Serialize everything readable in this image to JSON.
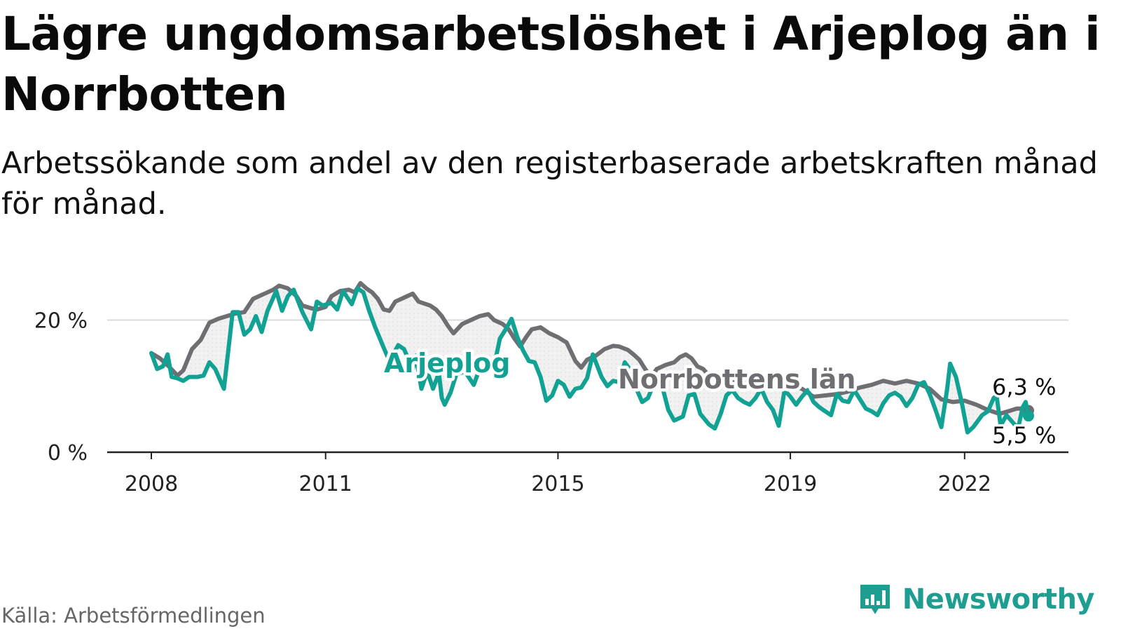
{
  "title": "Lägre ungdomsarbetslöshet i Arjeplog än i Norrbotten",
  "subtitle": "Arbetssökande som andel av den registerbaserade arbetskraften månad för månad.",
  "source": "Källa: Arbetsförmedlingen",
  "brand": {
    "name": "Newsworthy",
    "icon": "newsworthy-bar-chart-icon"
  },
  "colors": {
    "arjeplog": "#11a294",
    "norrbotten": "#6e6e73",
    "grid": "#dadada",
    "axis": "#222222",
    "brand": "#1d9e91"
  },
  "chart_data": {
    "type": "line",
    "title": "Lägre ungdomsarbetslöshet i Arjeplog än i Norrbotten",
    "xlabel": "",
    "ylabel": "",
    "xlim": [
      2008,
      2023.1
    ],
    "ylim": [
      0,
      26
    ],
    "yticks": [
      {
        "value": 0,
        "label": "0 %"
      },
      {
        "value": 20,
        "label": "20 %"
      }
    ],
    "xticks": [
      {
        "value": 2008,
        "label": "2008"
      },
      {
        "value": 2011,
        "label": "2011"
      },
      {
        "value": 2015,
        "label": "2015"
      },
      {
        "value": 2019,
        "label": "2019"
      },
      {
        "value": 2022,
        "label": "2022"
      }
    ],
    "grid": true,
    "series": [
      {
        "name": "Norrbottens län",
        "label": "Norrbottens län",
        "end_label": "6,3 %",
        "color": "#6e6e73",
        "points": [
          [
            2008.0,
            15.0
          ],
          [
            2008.15,
            14.2
          ],
          [
            2008.3,
            13.0
          ],
          [
            2008.45,
            11.6
          ],
          [
            2008.55,
            12.4
          ],
          [
            2008.7,
            15.6
          ],
          [
            2008.85,
            17.0
          ],
          [
            2009.0,
            19.6
          ],
          [
            2009.15,
            20.2
          ],
          [
            2009.3,
            20.6
          ],
          [
            2009.45,
            21.0
          ],
          [
            2009.6,
            21.2
          ],
          [
            2009.75,
            23.2
          ],
          [
            2009.9,
            23.8
          ],
          [
            2010.1,
            24.6
          ],
          [
            2010.2,
            25.2
          ],
          [
            2010.35,
            24.8
          ],
          [
            2010.5,
            23.6
          ],
          [
            2010.6,
            22.2
          ],
          [
            2010.75,
            21.8
          ],
          [
            2010.85,
            21.6
          ],
          [
            2011.0,
            22.0
          ],
          [
            2011.1,
            23.6
          ],
          [
            2011.25,
            24.4
          ],
          [
            2011.4,
            24.6
          ],
          [
            2011.5,
            24.2
          ],
          [
            2011.6,
            25.6
          ],
          [
            2011.7,
            24.8
          ],
          [
            2011.8,
            24.2
          ],
          [
            2011.9,
            23.2
          ],
          [
            2012.0,
            21.6
          ],
          [
            2012.1,
            21.4
          ],
          [
            2012.2,
            22.8
          ],
          [
            2012.35,
            23.4
          ],
          [
            2012.5,
            24.0
          ],
          [
            2012.6,
            22.8
          ],
          [
            2012.8,
            22.2
          ],
          [
            2012.9,
            21.6
          ],
          [
            2013.0,
            20.6
          ],
          [
            2013.1,
            19.2
          ],
          [
            2013.2,
            18.0
          ],
          [
            2013.35,
            19.4
          ],
          [
            2013.5,
            20.0
          ],
          [
            2013.65,
            20.6
          ],
          [
            2013.8,
            20.9
          ],
          [
            2013.9,
            20.0
          ],
          [
            2014.05,
            19.4
          ],
          [
            2014.15,
            18.6
          ],
          [
            2014.25,
            17.2
          ],
          [
            2014.35,
            16.0
          ],
          [
            2014.45,
            17.4
          ],
          [
            2014.55,
            18.6
          ],
          [
            2014.7,
            18.9
          ],
          [
            2014.85,
            18.0
          ],
          [
            2015.0,
            17.4
          ],
          [
            2015.15,
            16.6
          ],
          [
            2015.3,
            13.8
          ],
          [
            2015.4,
            12.8
          ],
          [
            2015.5,
            14.0
          ],
          [
            2015.65,
            14.6
          ],
          [
            2015.8,
            15.6
          ],
          [
            2015.95,
            16.1
          ],
          [
            2016.05,
            16.0
          ],
          [
            2016.2,
            15.5
          ],
          [
            2016.3,
            14.8
          ],
          [
            2016.4,
            14.0
          ],
          [
            2016.5,
            12.6
          ],
          [
            2016.6,
            11.4
          ],
          [
            2016.7,
            12.6
          ],
          [
            2016.85,
            13.2
          ],
          [
            2017.0,
            13.6
          ],
          [
            2017.1,
            14.4
          ],
          [
            2017.2,
            14.8
          ],
          [
            2017.3,
            14.2
          ],
          [
            2017.4,
            13.0
          ],
          [
            2017.5,
            12.6
          ],
          [
            2017.6,
            11.6
          ],
          [
            2017.8,
            10.6
          ],
          [
            2018.0,
            10.8
          ],
          [
            2018.2,
            10.5
          ],
          [
            2018.4,
            10.8
          ],
          [
            2018.6,
            11.4
          ],
          [
            2018.8,
            10.8
          ],
          [
            2019.0,
            10.0
          ],
          [
            2019.2,
            9.6
          ],
          [
            2019.4,
            8.4
          ],
          [
            2019.6,
            8.6
          ],
          [
            2019.8,
            8.8
          ],
          [
            2020.0,
            9.2
          ],
          [
            2020.2,
            9.8
          ],
          [
            2020.4,
            10.2
          ],
          [
            2020.6,
            10.8
          ],
          [
            2020.8,
            10.4
          ],
          [
            2021.0,
            10.8
          ],
          [
            2021.2,
            10.4
          ],
          [
            2021.4,
            9.6
          ],
          [
            2021.6,
            8.0
          ],
          [
            2021.8,
            7.6
          ],
          [
            2022.0,
            7.8
          ],
          [
            2022.2,
            7.2
          ],
          [
            2022.4,
            6.4
          ],
          [
            2022.6,
            5.8
          ],
          [
            2022.75,
            6.2
          ],
          [
            2022.9,
            6.6
          ],
          [
            2023.0,
            6.6
          ],
          [
            2023.1,
            6.3
          ]
        ]
      },
      {
        "name": "Arjeplog",
        "label": "Arjeplog",
        "end_label": "5,5 %",
        "color": "#11a294",
        "points": [
          [
            2008.0,
            15.0
          ],
          [
            2008.1,
            12.6
          ],
          [
            2008.2,
            13.0
          ],
          [
            2008.28,
            14.8
          ],
          [
            2008.35,
            11.4
          ],
          [
            2008.45,
            11.2
          ],
          [
            2008.55,
            10.8
          ],
          [
            2008.65,
            11.4
          ],
          [
            2008.8,
            11.4
          ],
          [
            2008.9,
            11.6
          ],
          [
            2009.0,
            13.6
          ],
          [
            2009.1,
            12.6
          ],
          [
            2009.25,
            9.6
          ],
          [
            2009.4,
            21.2
          ],
          [
            2009.5,
            21.2
          ],
          [
            2009.6,
            17.8
          ],
          [
            2009.7,
            18.6
          ],
          [
            2009.8,
            20.6
          ],
          [
            2009.9,
            18.2
          ],
          [
            2010.0,
            21.4
          ],
          [
            2010.1,
            23.4
          ],
          [
            2010.15,
            24.4
          ],
          [
            2010.25,
            21.4
          ],
          [
            2010.35,
            23.6
          ],
          [
            2010.45,
            24.6
          ],
          [
            2010.6,
            21.2
          ],
          [
            2010.75,
            18.6
          ],
          [
            2010.85,
            22.8
          ],
          [
            2010.95,
            22.2
          ],
          [
            2011.1,
            22.6
          ],
          [
            2011.2,
            21.6
          ],
          [
            2011.3,
            24.4
          ],
          [
            2011.45,
            22.4
          ],
          [
            2011.55,
            24.8
          ],
          [
            2011.65,
            24.2
          ],
          [
            2011.75,
            21.4
          ],
          [
            2011.85,
            19.0
          ],
          [
            2012.0,
            15.8
          ],
          [
            2012.1,
            13.8
          ],
          [
            2012.25,
            16.2
          ],
          [
            2012.35,
            15.6
          ],
          [
            2012.5,
            12.6
          ],
          [
            2012.55,
            14.6
          ],
          [
            2012.65,
            9.6
          ],
          [
            2012.75,
            12.2
          ],
          [
            2012.85,
            9.6
          ],
          [
            2012.95,
            12.0
          ],
          [
            2013.0,
            8.2
          ],
          [
            2013.05,
            7.2
          ],
          [
            2013.15,
            9.0
          ],
          [
            2013.25,
            11.8
          ],
          [
            2013.4,
            12.2
          ],
          [
            2013.55,
            10.2
          ],
          [
            2013.65,
            12.6
          ],
          [
            2013.75,
            12.8
          ],
          [
            2013.9,
            13.0
          ],
          [
            2014.0,
            17.2
          ],
          [
            2014.1,
            18.6
          ],
          [
            2014.2,
            20.2
          ],
          [
            2014.3,
            17.4
          ],
          [
            2014.4,
            15.4
          ],
          [
            2014.5,
            13.8
          ],
          [
            2014.6,
            13.6
          ],
          [
            2014.7,
            11.4
          ],
          [
            2014.8,
            7.8
          ],
          [
            2014.9,
            8.6
          ],
          [
            2015.0,
            10.8
          ],
          [
            2015.1,
            10.2
          ],
          [
            2015.2,
            8.4
          ],
          [
            2015.3,
            9.6
          ],
          [
            2015.4,
            9.8
          ],
          [
            2015.5,
            11.2
          ],
          [
            2015.6,
            14.8
          ],
          [
            2015.75,
            11.4
          ],
          [
            2015.85,
            10.0
          ],
          [
            2015.95,
            10.8
          ],
          [
            2016.05,
            10.6
          ],
          [
            2016.15,
            13.6
          ],
          [
            2016.25,
            12.4
          ],
          [
            2016.35,
            9.6
          ],
          [
            2016.45,
            7.6
          ],
          [
            2016.55,
            8.2
          ],
          [
            2016.65,
            10.4
          ],
          [
            2016.8,
            9.8
          ],
          [
            2016.9,
            6.4
          ],
          [
            2017.0,
            4.8
          ],
          [
            2017.15,
            5.4
          ],
          [
            2017.25,
            8.6
          ],
          [
            2017.35,
            8.8
          ],
          [
            2017.45,
            5.8
          ],
          [
            2017.6,
            4.2
          ],
          [
            2017.7,
            3.6
          ],
          [
            2017.8,
            5.8
          ],
          [
            2017.9,
            8.6
          ],
          [
            2018.0,
            9.4
          ],
          [
            2018.1,
            8.2
          ],
          [
            2018.2,
            7.6
          ],
          [
            2018.3,
            7.2
          ],
          [
            2018.4,
            8.2
          ],
          [
            2018.5,
            9.6
          ],
          [
            2018.6,
            7.6
          ],
          [
            2018.7,
            6.4
          ],
          [
            2018.8,
            4.0
          ],
          [
            2018.9,
            9.4
          ],
          [
            2019.0,
            8.4
          ],
          [
            2019.1,
            7.2
          ],
          [
            2019.2,
            8.4
          ],
          [
            2019.3,
            9.4
          ],
          [
            2019.4,
            7.6
          ],
          [
            2019.5,
            6.8
          ],
          [
            2019.6,
            6.2
          ],
          [
            2019.7,
            5.6
          ],
          [
            2019.8,
            8.8
          ],
          [
            2019.9,
            7.8
          ],
          [
            2020.0,
            7.6
          ],
          [
            2020.1,
            9.4
          ],
          [
            2020.2,
            8.0
          ],
          [
            2020.3,
            6.6
          ],
          [
            2020.4,
            6.2
          ],
          [
            2020.5,
            5.6
          ],
          [
            2020.6,
            7.4
          ],
          [
            2020.7,
            8.6
          ],
          [
            2020.8,
            9.0
          ],
          [
            2020.9,
            8.4
          ],
          [
            2021.0,
            7.0
          ],
          [
            2021.1,
            8.2
          ],
          [
            2021.2,
            10.2
          ],
          [
            2021.3,
            10.6
          ],
          [
            2021.4,
            8.8
          ],
          [
            2021.5,
            6.4
          ],
          [
            2021.6,
            3.8
          ],
          [
            2021.7,
            9.6
          ],
          [
            2021.75,
            13.4
          ],
          [
            2021.85,
            11.4
          ],
          [
            2021.95,
            7.6
          ],
          [
            2022.05,
            3.0
          ],
          [
            2022.15,
            3.8
          ],
          [
            2022.3,
            5.6
          ],
          [
            2022.4,
            6.2
          ],
          [
            2022.5,
            8.2
          ],
          [
            2022.55,
            8.6
          ],
          [
            2022.62,
            4.0
          ],
          [
            2022.72,
            5.6
          ],
          [
            2022.82,
            4.6
          ],
          [
            2022.92,
            3.6
          ],
          [
            2023.0,
            6.8
          ],
          [
            2023.05,
            7.6
          ],
          [
            2023.1,
            5.5
          ]
        ]
      }
    ],
    "series_labels_placement": "inline",
    "end_labels_placement": "right-of-line-end"
  }
}
